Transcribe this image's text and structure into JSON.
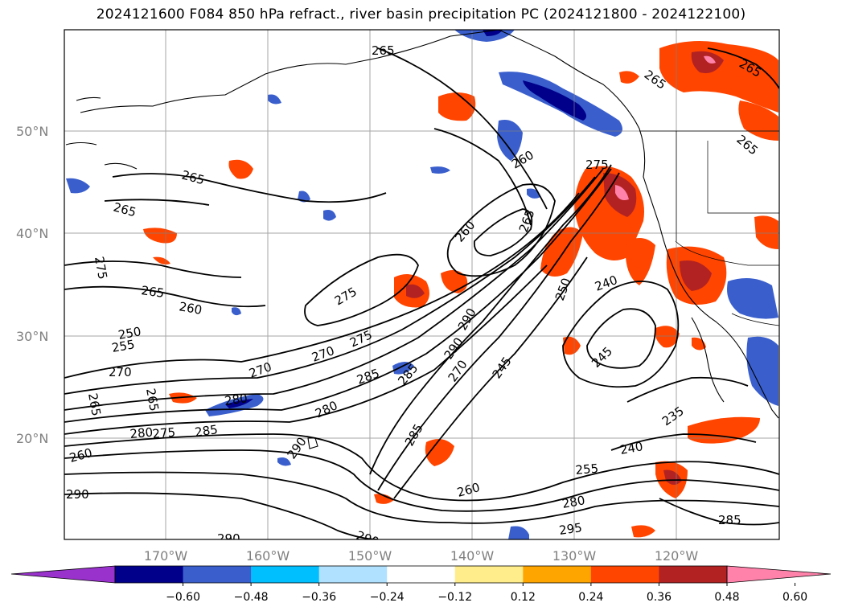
{
  "title": "2024121600 F084 850 hPa refract., river basin precipitation PC (2024121800 - 2024122100)",
  "map": {
    "lat_labels": [
      "50°N",
      "40°N",
      "30°N",
      "20°N"
    ],
    "lon_labels": [
      "170°W",
      "160°W",
      "150°W",
      "140°W",
      "130°W",
      "120°W"
    ],
    "grid_color": "#808080",
    "contour_labels": [
      "265",
      "265",
      "265",
      "265",
      "265",
      "265",
      "275",
      "265",
      "260",
      "250",
      "255",
      "270",
      "265",
      "265",
      "280",
      "275",
      "280",
      "285",
      "270",
      "275",
      "270",
      "285",
      "290",
      "280",
      "285",
      "290",
      "270",
      "285",
      "260",
      "265",
      "260",
      "275",
      "275",
      "240",
      "250",
      "245",
      "245",
      "235",
      "240",
      "255",
      "260",
      "280",
      "295",
      "285",
      "260",
      "290",
      "290",
      "290",
      "290"
    ]
  },
  "colorbar": {
    "colors": [
      "#9932cc",
      "#00008b",
      "#3a5fcd",
      "#00bfff",
      "#b0e2ff",
      "#ffffff",
      "#ffec8b",
      "#ffa500",
      "#ff4500",
      "#b22222",
      "#ff82ab"
    ],
    "tick_labels": [
      "−0.60",
      "−0.48",
      "−0.36",
      "−0.24",
      "−0.12",
      "0.12",
      "0.24",
      "0.36",
      "0.48",
      "0.60"
    ]
  }
}
